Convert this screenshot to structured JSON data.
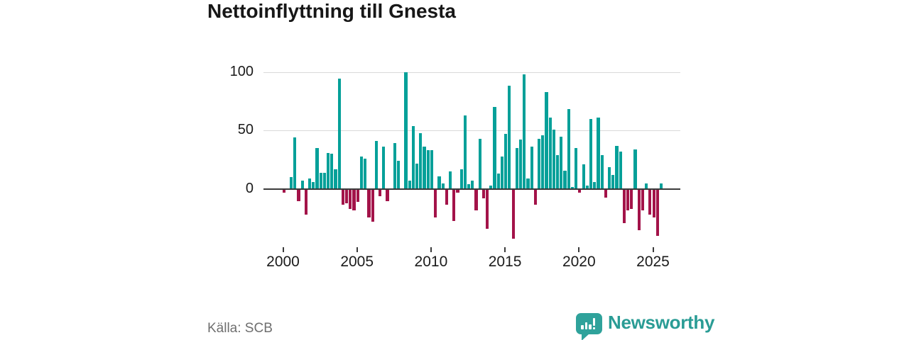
{
  "title": "Nettoinflyttning till Gnesta",
  "source": {
    "label": "Källa: SCB"
  },
  "brand": {
    "name": "Newsworthy",
    "icon": "newsworthy-chart-bubble-icon",
    "color": "#2a9c95"
  },
  "colors": {
    "positive_bar": "#04a099",
    "negative_bar": "#a31349",
    "gridline": "#d9d9d9",
    "zero_axis": "#3b3b3b",
    "text": "#1b1b1b",
    "muted_text": "#6f6f6f"
  },
  "chart_data": {
    "type": "bar",
    "title": "Nettoinflyttning till Gnesta",
    "xlabel": "",
    "ylabel": "",
    "x_period": "quarterly",
    "x_start_year": 2000,
    "x_start_quarter": 1,
    "x_tick_years": [
      2000,
      2005,
      2010,
      2015,
      2020,
      2025
    ],
    "y_ticks": [
      0,
      50,
      100
    ],
    "ylim": [
      -48,
      110
    ],
    "grid": "horizontal",
    "legend": "none",
    "series": [
      {
        "name": "Nettoinflyttning",
        "values": [
          -3,
          0,
          10,
          44,
          -10,
          7,
          -22,
          9,
          6,
          35,
          14,
          14,
          31,
          30,
          17,
          94,
          -13,
          -12,
          -17,
          -18,
          -11,
          28,
          26,
          -24,
          -28,
          41,
          -6,
          36,
          -10,
          0,
          39,
          24,
          0,
          100,
          7,
          54,
          22,
          48,
          36,
          33,
          33,
          -24,
          11,
          5,
          -13,
          15,
          -27,
          -3,
          17,
          63,
          4,
          7,
          -18,
          43,
          -8,
          -34,
          3,
          70,
          13,
          28,
          47,
          88,
          -42,
          35,
          42,
          98,
          9,
          36,
          -13,
          43,
          46,
          83,
          61,
          51,
          29,
          45,
          16,
          68,
          2,
          35,
          -3,
          21,
          3,
          60,
          6,
          61,
          29,
          -7,
          19,
          12,
          37,
          32,
          -29,
          -18,
          -17,
          34,
          -35,
          -18,
          5,
          -22,
          -24,
          -40,
          5
        ]
      }
    ]
  }
}
